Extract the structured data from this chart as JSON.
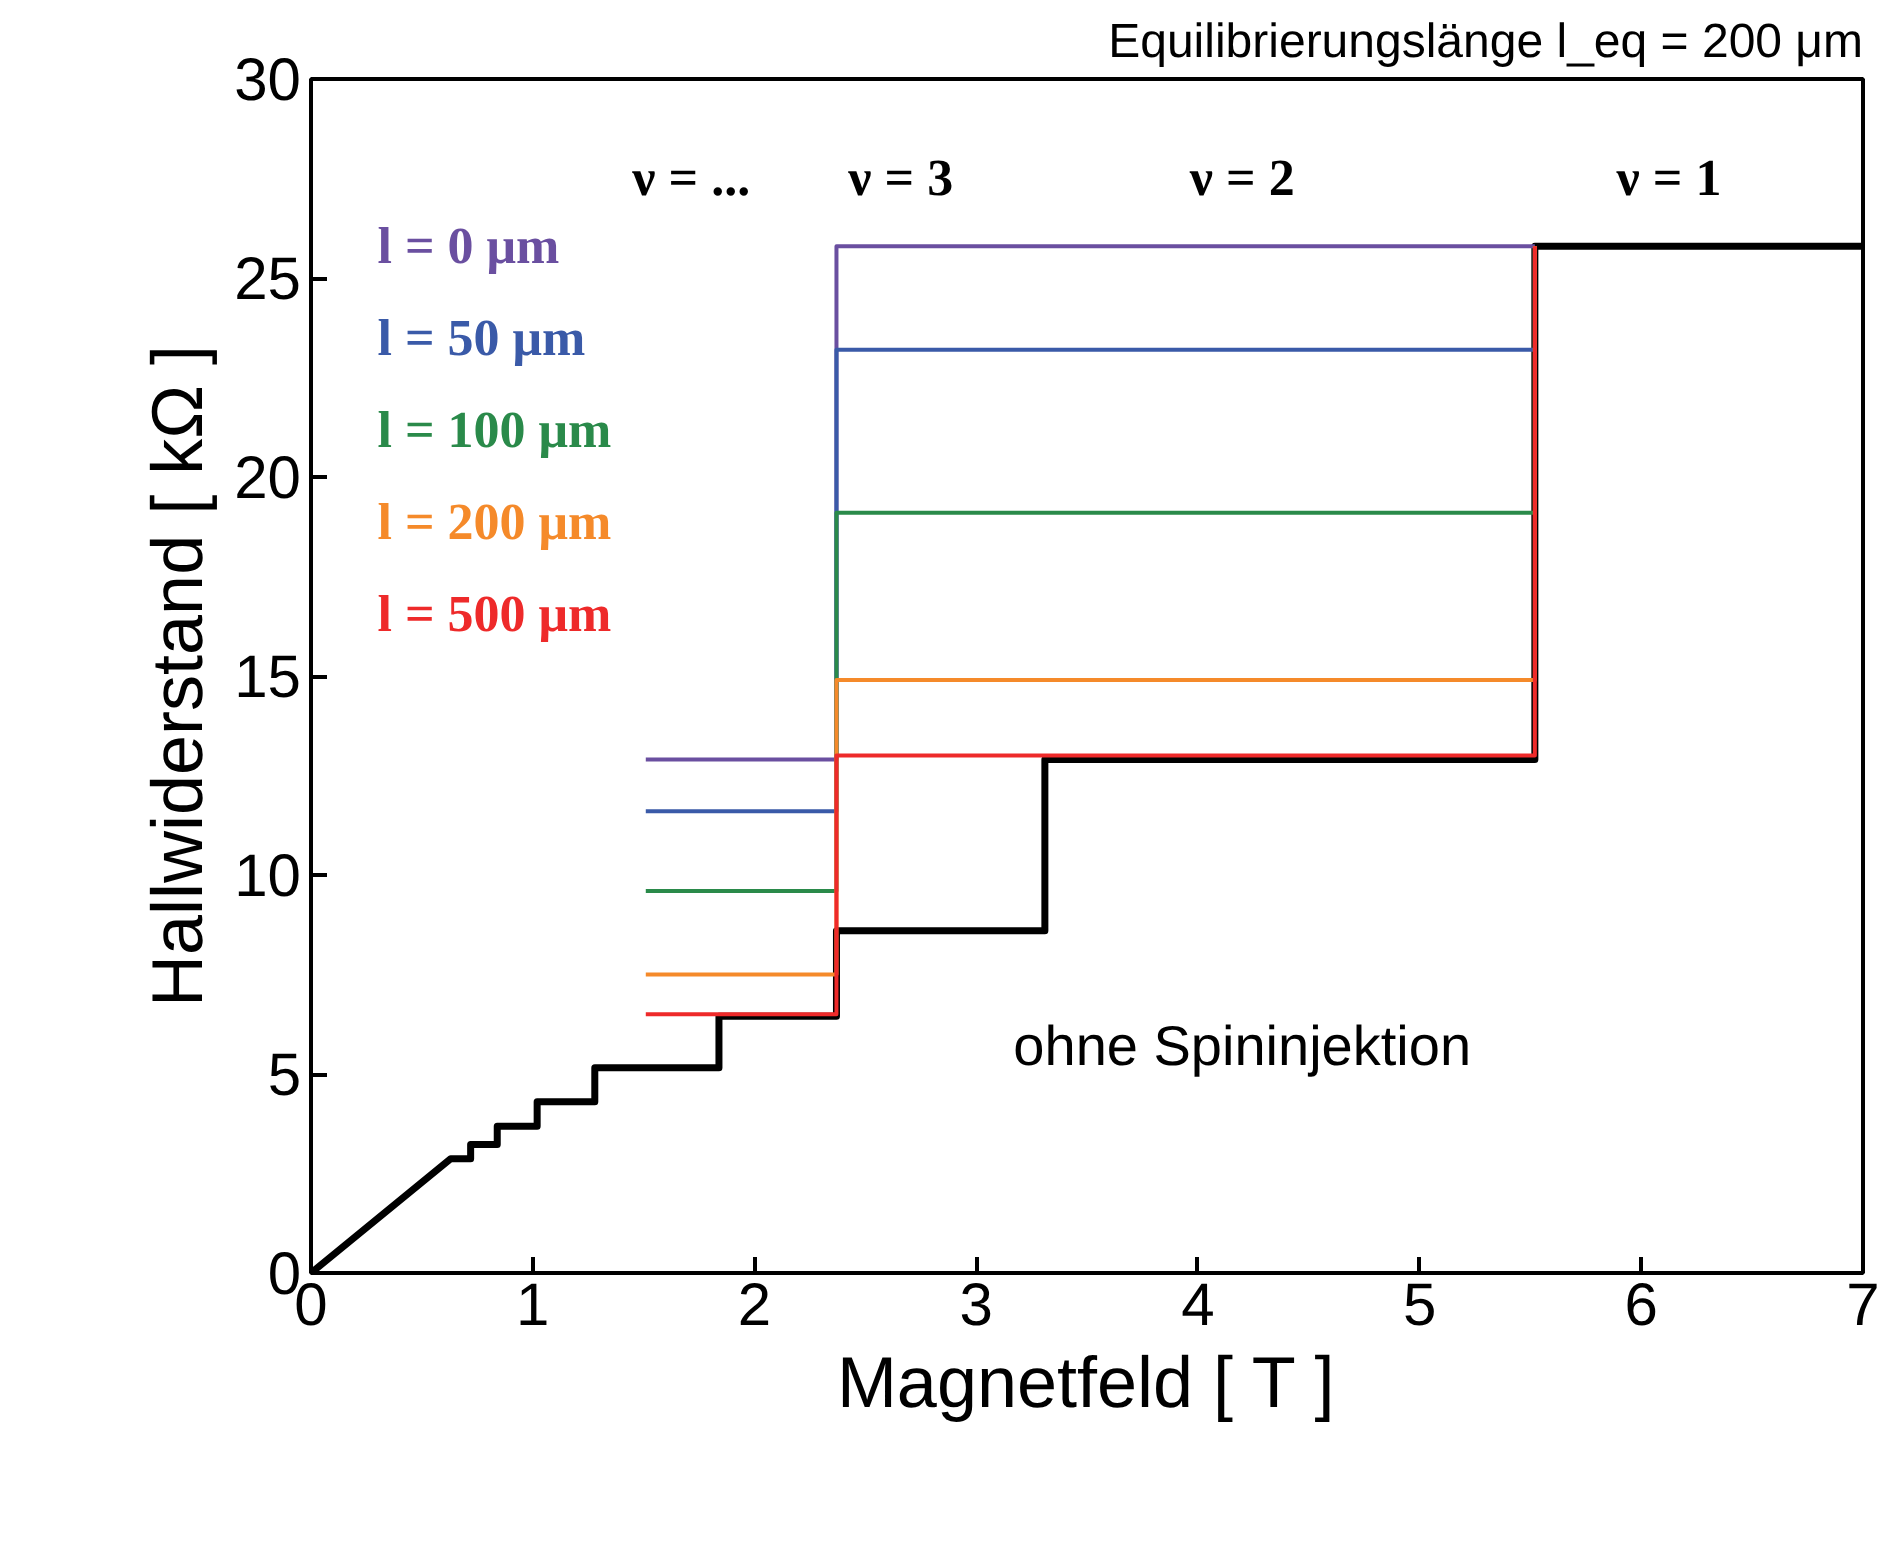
{
  "chart_data": {
    "type": "line",
    "title": "Equilibrierungslänge l_eq = 200 μm",
    "xlabel": "Magnetfeld [ T ]",
    "ylabel": "Hallwiderstand [ kΩ ]",
    "xlim": [
      0,
      7
    ],
    "ylim": [
      0,
      30
    ],
    "xticks": [
      0,
      1,
      2,
      3,
      4,
      5,
      6,
      7
    ],
    "yticks": [
      0,
      5,
      10,
      15,
      20,
      25,
      30
    ],
    "grid": false,
    "legend": "top left",
    "marker": "none",
    "line_style": "solid",
    "series": [
      {
        "color": "#000000",
        "x": [
          0,
          0.63,
          0.72,
          0.72,
          0.84,
          0.84,
          1.02,
          1.02,
          1.28,
          1.28,
          1.84,
          1.84,
          2.37,
          2.37,
          3.31,
          3.31,
          5.52,
          5.52,
          7.0
        ],
        "values": [
          0,
          2.87,
          2.87,
          3.23,
          3.23,
          3.69,
          3.69,
          4.3,
          4.3,
          5.16,
          5.16,
          6.45,
          6.45,
          8.6,
          8.6,
          12.9,
          12.9,
          25.8,
          25.8
        ]
      },
      {
        "name": "l = 0 μm",
        "color": "#6a4fa0",
        "x": [
          1.51,
          2.37,
          2.37,
          5.52,
          5.52
        ],
        "values": [
          12.9,
          12.9,
          25.8,
          25.8,
          25.8
        ]
      },
      {
        "name": "l = 50 μm",
        "color": "#3a5aa8",
        "x": [
          1.51,
          2.37,
          2.37,
          5.52,
          5.52
        ],
        "values": [
          11.6,
          11.6,
          23.2,
          23.2,
          25.8
        ]
      },
      {
        "name": "l = 100 μm",
        "color": "#2a8a4a",
        "x": [
          1.51,
          2.37,
          2.37,
          5.52,
          5.52
        ],
        "values": [
          9.6,
          9.6,
          19.1,
          19.1,
          25.8
        ]
      },
      {
        "name": "l = 200 μm",
        "color": "#f58a2a",
        "x": [
          1.51,
          2.37,
          2.37,
          5.52,
          5.52
        ],
        "values": [
          7.5,
          7.5,
          14.9,
          14.9,
          25.8
        ]
      },
      {
        "name": "l = 500 μm",
        "color": "#ee2a2a",
        "x": [
          1.51,
          2.37,
          2.37,
          5.52,
          5.52
        ],
        "values": [
          6.5,
          6.5,
          13.0,
          13.0,
          25.8
        ]
      }
    ],
    "annotations": [
      "ν = ...",
      "ν = 3",
      "ν = 2",
      "ν = 1",
      "ohne Spininjektion"
    ]
  }
}
